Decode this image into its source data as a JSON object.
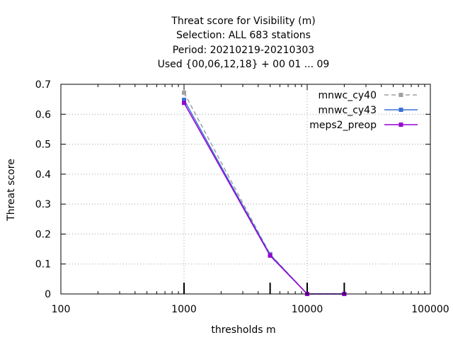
{
  "chart_data": {
    "type": "line",
    "title_lines": [
      "Threat score  for Visibility (m)",
      "Selection: ALL    683 stations",
      "Period: 20210219-20210303",
      "Used {00,06,12,18} + 00 01 ... 09"
    ],
    "xlabel": "thresholds m",
    "ylabel": "Threat score",
    "xscale": "log",
    "xlim": [
      100,
      100000
    ],
    "ylim": [
      0,
      0.7
    ],
    "x_ticks": [
      100,
      1000,
      10000,
      100000
    ],
    "x_tick_labels": [
      "100",
      "1000",
      "10000",
      "100000"
    ],
    "y_ticks": [
      0,
      0.1,
      0.2,
      0.3,
      0.4,
      0.5,
      0.6,
      0.7
    ],
    "y_tick_labels": [
      "0",
      "0.1",
      "0.2",
      "0.3",
      "0.4",
      "0.5",
      "0.6",
      "0.7"
    ],
    "grid": true,
    "legend_position": "top-right",
    "threshold_markers": [
      1000,
      5000,
      10000,
      20000
    ],
    "series": [
      {
        "name": "mnwc_cy40",
        "color": "#a0a0a4",
        "dash": "dashed",
        "x": [
          1000,
          5000,
          10000,
          20000
        ],
        "y": [
          0.672,
          0.133,
          0.0,
          0.0
        ]
      },
      {
        "name": "mnwc_cy43",
        "color": "#3a6fd8",
        "dash": "solid",
        "x": [
          1000,
          5000,
          10000,
          20000
        ],
        "y": [
          0.648,
          0.131,
          0.0,
          0.0
        ]
      },
      {
        "name": "meps2_preop",
        "color": "#9400d3",
        "dash": "solid",
        "x": [
          1000,
          5000,
          10000,
          20000
        ],
        "y": [
          0.638,
          0.128,
          0.0,
          0.0
        ]
      }
    ]
  }
}
